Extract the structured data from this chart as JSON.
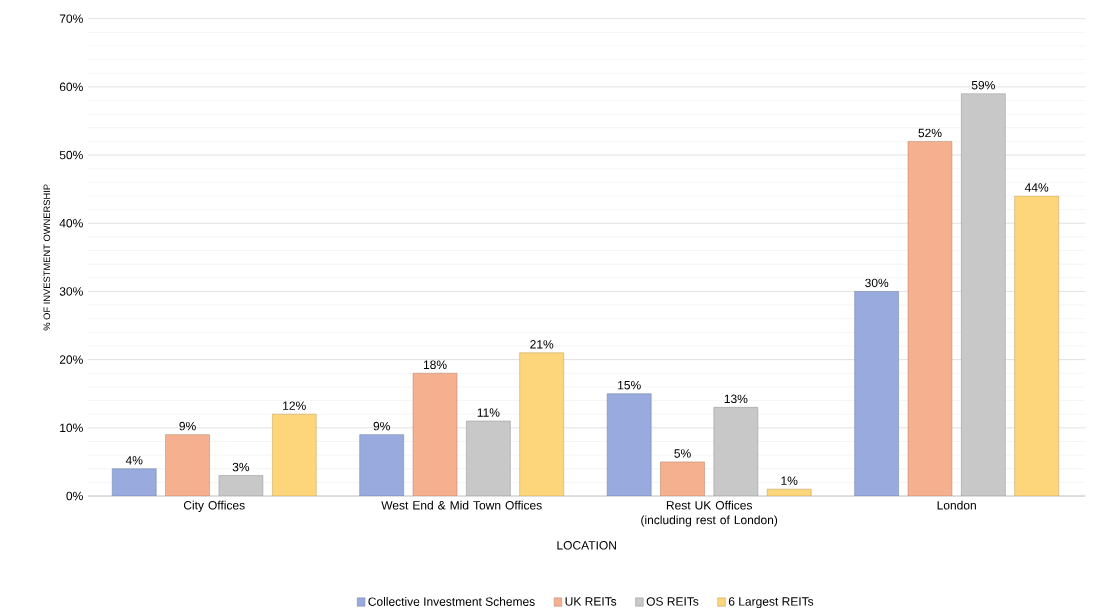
{
  "chart_data": {
    "type": "bar",
    "xlabel": "LOCATION",
    "ylabel": "% OF INVESTMENT OWNERSHIP",
    "categories": [
      "City Offices",
      "West End & Mid Town Offices",
      "Rest UK Offices (including rest of London)",
      "London"
    ],
    "series": [
      {
        "name": "Collective Investment Schemes",
        "color": "#98aade",
        "values": [
          4,
          9,
          15,
          30
        ],
        "value_labels": [
          "4%",
          "9%",
          "15%",
          "30%"
        ]
      },
      {
        "name": "UK REITs",
        "color": "#f5b08f",
        "values": [
          9,
          18,
          5,
          52
        ],
        "value_labels": [
          "9%",
          "18%",
          "5%",
          "52%"
        ]
      },
      {
        "name": "OS REITs",
        "color": "#c8c8c8",
        "values": [
          3,
          11,
          13,
          59
        ],
        "value_labels": [
          "3%",
          "11%",
          "13%",
          "59%"
        ]
      },
      {
        "name": "6 Largest REITs",
        "color": "#fdd57a",
        "values": [
          12,
          21,
          1,
          44
        ],
        "value_labels": [
          "12%",
          "21%",
          "1%",
          "44%"
        ]
      }
    ],
    "ylim": [
      0,
      70
    ],
    "yticks": [
      {
        "value": 0,
        "label": "0%"
      },
      {
        "value": 10,
        "label": "10%"
      },
      {
        "value": 20,
        "label": "20%"
      },
      {
        "value": 30,
        "label": "30%"
      },
      {
        "value": 40,
        "label": "40%"
      },
      {
        "value": 50,
        "label": "50%"
      },
      {
        "value": 60,
        "label": "60%"
      },
      {
        "value": 70,
        "label": "70%"
      }
    ],
    "grid": "y",
    "legend": "bottom"
  }
}
